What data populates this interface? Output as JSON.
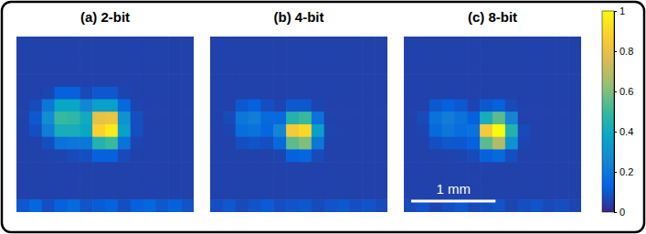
{
  "chart_data": [
    {
      "type": "heatmap",
      "title": "(a) 2-bit",
      "tick_labels": false,
      "cells": [
        [
          0.05,
          0.05,
          0.05,
          0.05,
          0.05,
          0.05,
          0.05,
          0.05,
          0.05,
          0.05,
          0.05,
          0.05,
          0.05,
          0.05
        ],
        [
          0.05,
          0.05,
          0.05,
          0.05,
          0.05,
          0.05,
          0.05,
          0.05,
          0.05,
          0.05,
          0.05,
          0.05,
          0.05,
          0.05
        ],
        [
          0.05,
          0.05,
          0.05,
          0.05,
          0.05,
          0.05,
          0.05,
          0.05,
          0.05,
          0.05,
          0.05,
          0.05,
          0.05,
          0.05
        ],
        [
          0.05,
          0.05,
          0.05,
          0.05,
          0.05,
          0.05,
          0.05,
          0.05,
          0.05,
          0.05,
          0.05,
          0.05,
          0.05,
          0.05
        ],
        [
          0.05,
          0.05,
          0.06,
          0.12,
          0.12,
          0.07,
          0.1,
          0.1,
          0.06,
          0.05,
          0.05,
          0.05,
          0.05,
          0.05
        ],
        [
          0.05,
          0.07,
          0.2,
          0.38,
          0.38,
          0.25,
          0.35,
          0.35,
          0.15,
          0.06,
          0.05,
          0.05,
          0.05,
          0.05
        ],
        [
          0.05,
          0.1,
          0.28,
          0.5,
          0.48,
          0.4,
          0.8,
          0.82,
          0.3,
          0.08,
          0.05,
          0.05,
          0.05,
          0.05
        ],
        [
          0.05,
          0.08,
          0.22,
          0.42,
          0.42,
          0.38,
          0.88,
          0.95,
          0.35,
          0.08,
          0.05,
          0.05,
          0.05,
          0.05
        ],
        [
          0.05,
          0.05,
          0.08,
          0.18,
          0.2,
          0.2,
          0.45,
          0.5,
          0.18,
          0.06,
          0.05,
          0.05,
          0.05,
          0.05
        ],
        [
          0.05,
          0.05,
          0.05,
          0.06,
          0.07,
          0.08,
          0.12,
          0.12,
          0.07,
          0.05,
          0.05,
          0.05,
          0.05,
          0.05
        ],
        [
          0.05,
          0.05,
          0.05,
          0.05,
          0.05,
          0.05,
          0.05,
          0.05,
          0.05,
          0.05,
          0.05,
          0.05,
          0.05,
          0.05
        ],
        [
          0.05,
          0.05,
          0.05,
          0.05,
          0.05,
          0.05,
          0.05,
          0.05,
          0.05,
          0.05,
          0.05,
          0.05,
          0.05,
          0.05
        ],
        [
          0.05,
          0.05,
          0.05,
          0.05,
          0.05,
          0.05,
          0.05,
          0.05,
          0.05,
          0.05,
          0.05,
          0.05,
          0.05,
          0.05
        ],
        [
          0.1,
          0.14,
          0.08,
          0.12,
          0.15,
          0.09,
          0.11,
          0.13,
          0.08,
          0.12,
          0.14,
          0.1,
          0.12,
          0.09
        ]
      ]
    },
    {
      "type": "heatmap",
      "title": "(b) 4-bit",
      "tick_labels": false,
      "cells": [
        [
          0.05,
          0.05,
          0.05,
          0.05,
          0.05,
          0.05,
          0.05,
          0.05,
          0.05,
          0.05,
          0.05,
          0.05,
          0.05,
          0.05
        ],
        [
          0.05,
          0.05,
          0.05,
          0.05,
          0.05,
          0.05,
          0.05,
          0.05,
          0.05,
          0.05,
          0.05,
          0.05,
          0.05,
          0.05
        ],
        [
          0.05,
          0.05,
          0.05,
          0.05,
          0.05,
          0.05,
          0.05,
          0.05,
          0.05,
          0.05,
          0.05,
          0.05,
          0.05,
          0.05
        ],
        [
          0.05,
          0.05,
          0.05,
          0.05,
          0.05,
          0.05,
          0.05,
          0.05,
          0.05,
          0.05,
          0.05,
          0.05,
          0.05,
          0.05
        ],
        [
          0.05,
          0.05,
          0.05,
          0.05,
          0.05,
          0.05,
          0.05,
          0.05,
          0.05,
          0.05,
          0.05,
          0.05,
          0.05,
          0.05
        ],
        [
          0.05,
          0.05,
          0.1,
          0.12,
          0.08,
          0.06,
          0.1,
          0.1,
          0.06,
          0.05,
          0.05,
          0.05,
          0.05,
          0.05
        ],
        [
          0.05,
          0.07,
          0.2,
          0.22,
          0.15,
          0.15,
          0.45,
          0.5,
          0.18,
          0.05,
          0.05,
          0.05,
          0.05,
          0.05
        ],
        [
          0.05,
          0.06,
          0.16,
          0.18,
          0.14,
          0.25,
          0.85,
          0.9,
          0.35,
          0.06,
          0.05,
          0.05,
          0.05,
          0.05
        ],
        [
          0.05,
          0.05,
          0.08,
          0.09,
          0.08,
          0.15,
          0.55,
          0.6,
          0.2,
          0.05,
          0.05,
          0.05,
          0.05,
          0.05
        ],
        [
          0.05,
          0.05,
          0.05,
          0.05,
          0.05,
          0.06,
          0.12,
          0.14,
          0.07,
          0.05,
          0.05,
          0.05,
          0.05,
          0.05
        ],
        [
          0.05,
          0.05,
          0.05,
          0.05,
          0.05,
          0.05,
          0.05,
          0.05,
          0.05,
          0.05,
          0.05,
          0.05,
          0.05,
          0.05
        ],
        [
          0.05,
          0.05,
          0.05,
          0.05,
          0.05,
          0.05,
          0.05,
          0.05,
          0.05,
          0.05,
          0.05,
          0.05,
          0.05,
          0.05
        ],
        [
          0.05,
          0.05,
          0.05,
          0.05,
          0.05,
          0.05,
          0.05,
          0.05,
          0.05,
          0.05,
          0.05,
          0.05,
          0.05,
          0.05
        ],
        [
          0.08,
          0.1,
          0.07,
          0.09,
          0.11,
          0.08,
          0.09,
          0.1,
          0.07,
          0.09,
          0.1,
          0.08,
          0.09,
          0.07
        ]
      ]
    },
    {
      "type": "heatmap",
      "title": "(c) 8-bit",
      "tick_labels": false,
      "xlim": [
        0,
        2.1
      ],
      "scale_bar": {
        "label": "1 mm",
        "length": 1
      },
      "colorbar": {
        "range": [
          0,
          1
        ],
        "ticks": [
          0,
          0.2,
          0.4,
          0.6,
          0.8,
          1
        ]
      },
      "cells": [
        [
          0.05,
          0.05,
          0.05,
          0.05,
          0.05,
          0.05,
          0.05,
          0.05,
          0.05,
          0.05,
          0.05,
          0.05,
          0.05,
          0.05
        ],
        [
          0.05,
          0.05,
          0.05,
          0.05,
          0.05,
          0.05,
          0.05,
          0.05,
          0.05,
          0.05,
          0.05,
          0.05,
          0.05,
          0.05
        ],
        [
          0.05,
          0.05,
          0.05,
          0.05,
          0.05,
          0.05,
          0.05,
          0.05,
          0.05,
          0.05,
          0.05,
          0.05,
          0.05,
          0.05
        ],
        [
          0.05,
          0.05,
          0.05,
          0.05,
          0.05,
          0.05,
          0.05,
          0.05,
          0.05,
          0.05,
          0.05,
          0.05,
          0.05,
          0.05
        ],
        [
          0.05,
          0.05,
          0.05,
          0.05,
          0.05,
          0.05,
          0.05,
          0.05,
          0.05,
          0.05,
          0.05,
          0.05,
          0.05,
          0.05
        ],
        [
          0.05,
          0.05,
          0.1,
          0.12,
          0.1,
          0.06,
          0.1,
          0.12,
          0.07,
          0.05,
          0.05,
          0.05,
          0.05,
          0.05
        ],
        [
          0.05,
          0.07,
          0.18,
          0.22,
          0.18,
          0.12,
          0.42,
          0.55,
          0.25,
          0.05,
          0.05,
          0.05,
          0.05,
          0.05
        ],
        [
          0.05,
          0.06,
          0.15,
          0.2,
          0.16,
          0.18,
          0.85,
          1,
          0.45,
          0.07,
          0.05,
          0.05,
          0.05,
          0.05
        ],
        [
          0.05,
          0.05,
          0.08,
          0.1,
          0.1,
          0.12,
          0.55,
          0.68,
          0.3,
          0.06,
          0.05,
          0.05,
          0.05,
          0.05
        ],
        [
          0.05,
          0.05,
          0.05,
          0.05,
          0.06,
          0.07,
          0.12,
          0.15,
          0.08,
          0.05,
          0.05,
          0.05,
          0.05,
          0.05
        ],
        [
          0.05,
          0.05,
          0.05,
          0.05,
          0.05,
          0.05,
          0.05,
          0.05,
          0.05,
          0.05,
          0.05,
          0.05,
          0.05,
          0.05
        ],
        [
          0.05,
          0.05,
          0.05,
          0.05,
          0.05,
          0.05,
          0.05,
          0.05,
          0.05,
          0.05,
          0.05,
          0.05,
          0.05,
          0.05
        ],
        [
          0.05,
          0.05,
          0.05,
          0.05,
          0.05,
          0.05,
          0.05,
          0.05,
          0.05,
          0.05,
          0.05,
          0.05,
          0.05,
          0.05
        ],
        [
          0.07,
          0.09,
          0.06,
          0.08,
          0.1,
          0.07,
          0.08,
          0.09,
          0.06,
          0.08,
          0.09,
          0.07,
          0.08,
          0.06
        ]
      ]
    }
  ]
}
